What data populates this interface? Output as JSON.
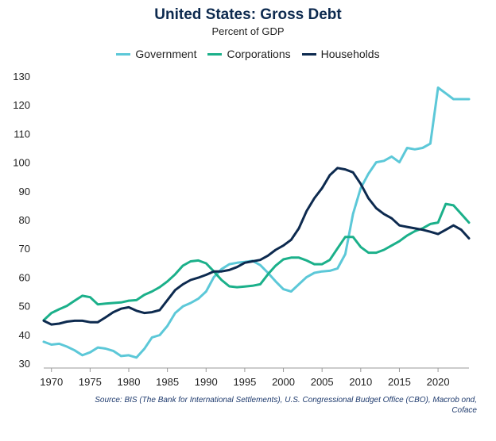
{
  "chart_data": {
    "type": "line",
    "title": "United States: Gross Debt",
    "subtitle": "Percent of GDP",
    "ylim": [
      30,
      130
    ],
    "yticks": [
      30,
      40,
      50,
      60,
      70,
      80,
      90,
      100,
      110,
      120,
      130
    ],
    "xlim": [
      1969,
      2024
    ],
    "xticks": [
      1970,
      1975,
      1980,
      1985,
      1990,
      1995,
      2000,
      2005,
      2010,
      2015,
      2020
    ],
    "grid": false,
    "legend_position": "top",
    "series": [
      {
        "name": "Government",
        "color": "#5cc8d8",
        "x": [
          1969,
          1970,
          1971,
          1972,
          1973,
          1974,
          1975,
          1976,
          1977,
          1978,
          1979,
          1980,
          1981,
          1982,
          1983,
          1984,
          1985,
          1986,
          1987,
          1988,
          1989,
          1990,
          1991,
          1992,
          1993,
          1994,
          1995,
          1996,
          1997,
          1998,
          1999,
          2000,
          2001,
          2002,
          2003,
          2004,
          2005,
          2006,
          2007,
          2008,
          2009,
          2010,
          2011,
          2012,
          2013,
          2014,
          2015,
          2016,
          2017,
          2018,
          2019,
          2020,
          2021,
          2022,
          2023,
          2024
        ],
        "y": [
          37.5,
          36.5,
          36.8,
          35.8,
          34.5,
          32.8,
          33.8,
          35.5,
          35.1,
          34.3,
          32.5,
          32.8,
          32.0,
          35.0,
          39.0,
          39.8,
          43.0,
          47.5,
          49.8,
          51.0,
          52.5,
          55.0,
          60.0,
          62.8,
          64.5,
          65.0,
          65.3,
          65.7,
          64.2,
          61.5,
          58.5,
          55.8,
          55.0,
          57.5,
          60.0,
          61.5,
          62.0,
          62.2,
          63.0,
          68.0,
          82.0,
          91.0,
          96.0,
          100.0,
          100.5,
          102.0,
          100.0,
          105.0,
          104.5,
          105.0,
          106.5,
          126.0,
          124.0,
          122.0,
          122.0,
          122.0
        ]
      },
      {
        "name": "Corporations",
        "color": "#1bb08a",
        "x": [
          1969,
          1970,
          1971,
          1972,
          1973,
          1974,
          1975,
          1976,
          1977,
          1978,
          1979,
          1980,
          1981,
          1982,
          1983,
          1984,
          1985,
          1986,
          1987,
          1988,
          1989,
          1990,
          1991,
          1992,
          1993,
          1994,
          1995,
          1996,
          1997,
          1998,
          1999,
          2000,
          2001,
          2002,
          2003,
          2004,
          2005,
          2006,
          2007,
          2008,
          2009,
          2010,
          2011,
          2012,
          2013,
          2014,
          2015,
          2016,
          2017,
          2018,
          2019,
          2020,
          2021,
          2022,
          2023,
          2024
        ],
        "y": [
          45.0,
          47.5,
          48.8,
          50.0,
          51.8,
          53.5,
          53.0,
          50.5,
          50.8,
          51.0,
          51.2,
          51.8,
          52.0,
          53.8,
          55.0,
          56.5,
          58.5,
          61.0,
          64.0,
          65.5,
          65.8,
          64.8,
          62.0,
          59.0,
          56.8,
          56.5,
          56.7,
          57.0,
          57.5,
          61.0,
          64.0,
          66.2,
          66.8,
          66.8,
          65.8,
          64.5,
          64.5,
          66.0,
          70.0,
          74.0,
          74.0,
          70.5,
          68.5,
          68.5,
          69.5,
          71.0,
          72.5,
          74.5,
          76.0,
          77.0,
          78.5,
          79.0,
          85.5,
          85.0,
          82.0,
          79.0
        ]
      },
      {
        "name": "Households",
        "color": "#0d2a4f",
        "x": [
          1969,
          1970,
          1971,
          1972,
          1973,
          1974,
          1975,
          1976,
          1977,
          1978,
          1979,
          1980,
          1981,
          1982,
          1983,
          1984,
          1985,
          1986,
          1987,
          1988,
          1989,
          1990,
          1991,
          1992,
          1993,
          1994,
          1995,
          1996,
          1997,
          1998,
          1999,
          2000,
          2001,
          2002,
          2003,
          2004,
          2005,
          2006,
          2007,
          2008,
          2009,
          2010,
          2011,
          2012,
          2013,
          2014,
          2015,
          2016,
          2017,
          2018,
          2019,
          2020,
          2021,
          2022,
          2023,
          2024
        ],
        "y": [
          44.8,
          43.5,
          43.8,
          44.5,
          44.8,
          44.8,
          44.3,
          44.3,
          46.0,
          47.8,
          49.0,
          49.5,
          48.3,
          47.5,
          47.8,
          48.5,
          52.0,
          55.5,
          57.5,
          59.0,
          59.8,
          60.8,
          62.0,
          62.0,
          62.5,
          63.5,
          65.0,
          65.5,
          66.0,
          67.5,
          69.5,
          71.0,
          73.0,
          77.0,
          83.0,
          87.5,
          91.0,
          95.5,
          98.0,
          97.5,
          96.5,
          92.5,
          87.5,
          84.0,
          82.0,
          80.5,
          78.0,
          77.5,
          77.0,
          76.5,
          75.8,
          75.0,
          76.5,
          78.0,
          76.5,
          73.5
        ]
      }
    ]
  },
  "source_line1": "Source: BIS (The Bank for International Settlements), U.S. Congressional Budget Office (CBO), Macrob    ond,",
  "source_line2": "Coface"
}
